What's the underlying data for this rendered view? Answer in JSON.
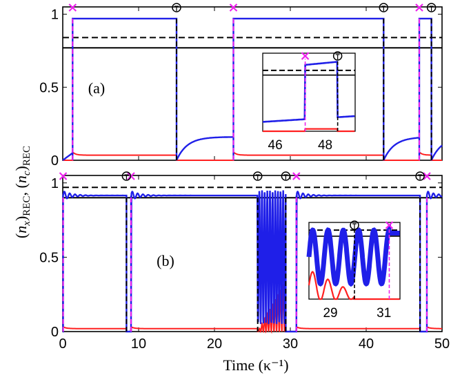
{
  "figure": {
    "ylabel": "(n_x)_REC, (n_c)_REC",
    "ylabel_parts": [
      "(",
      "n",
      "x",
      ")",
      "REC",
      ", (",
      "n",
      "c",
      ")",
      "REC"
    ],
    "xlabel": "Time (κ⁻¹)"
  },
  "chart_data": [
    {
      "type": "line",
      "panel_label": "(a)",
      "xlim": [
        0,
        50
      ],
      "ylim": [
        0,
        1.05
      ],
      "yticks": [
        0,
        0.5,
        1
      ],
      "ytick_labels": [
        "0",
        "0.5",
        "1"
      ],
      "xticks": [
        0,
        10,
        20,
        30,
        40,
        50
      ],
      "xtick_labels": [],
      "thresholds": {
        "dashed": 0.84,
        "solid": 0.77
      },
      "switch_on_times": [
        1.3,
        22.5,
        47.0
      ],
      "switch_off_times": [
        15.0,
        42.3,
        48.6
      ],
      "series": [
        {
          "color": "#1f1fe8",
          "high": 0.97,
          "low_plateau": 0.16
        },
        {
          "color": "#ff1f1f",
          "high": 0.035,
          "low": 0.0
        }
      ],
      "inset": {
        "xlim": [
          45.5,
          49.2
        ],
        "xticks": [
          46,
          48
        ],
        "xtick_labels": [
          "46",
          "48"
        ],
        "switch_on": 47.2,
        "switch_off": 48.5
      }
    },
    {
      "type": "line",
      "panel_label": "(b)",
      "xlim": [
        0,
        50
      ],
      "ylim": [
        0,
        1.05
      ],
      "yticks": [
        0,
        0.5,
        1
      ],
      "ytick_labels": [
        "0",
        "0.5",
        "1"
      ],
      "xticks": [
        0,
        10,
        20,
        30,
        40,
        50
      ],
      "xtick_labels": [
        "0",
        "10",
        "20",
        "30",
        "40",
        "50"
      ],
      "thresholds": {
        "dashed": 0.97,
        "solid": 0.9
      },
      "switch_on_times": [
        0.05,
        9.0,
        30.8,
        48.0
      ],
      "switch_off_times": [
        8.4,
        25.7,
        29.4,
        47.1
      ],
      "series": [
        {
          "color": "#1f1fe8",
          "high": 0.915,
          "low": 0.0
        },
        {
          "color": "#ff1f1f",
          "high": 0.02,
          "low": 0.0
        }
      ],
      "inset": {
        "xlim": [
          28.2,
          31.6
        ],
        "xticks": [
          29,
          31
        ],
        "xtick_labels": [
          "29",
          "31"
        ],
        "switch_off": 29.9,
        "switch_on": 31.2
      }
    }
  ]
}
